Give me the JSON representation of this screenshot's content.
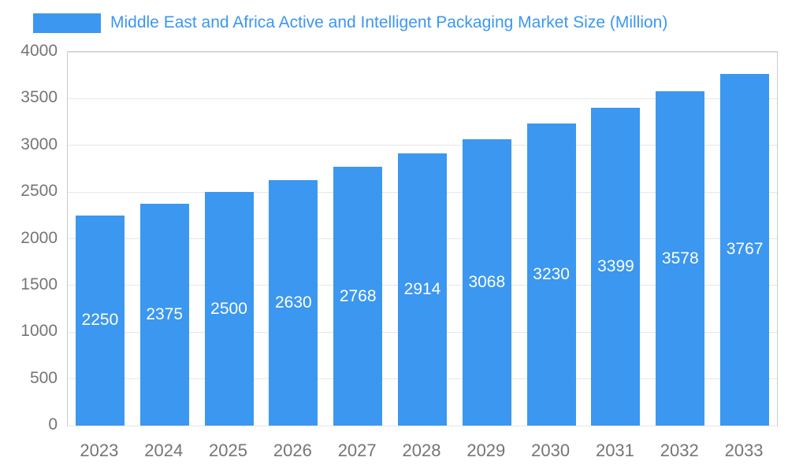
{
  "chart_data": {
    "type": "bar",
    "title": "Middle East and Africa Active and Intelligent Packaging Market Size (Million)",
    "categories": [
      "2023",
      "2024",
      "2025",
      "2026",
      "2027",
      "2028",
      "2029",
      "2030",
      "2031",
      "2032",
      "2033"
    ],
    "values": [
      2250,
      2375,
      2500,
      2630,
      2768,
      2914,
      3068,
      3230,
      3399,
      3578,
      3767
    ],
    "xlabel": "",
    "ylabel": "",
    "ylim": [
      0,
      4000
    ],
    "yticks": [
      0,
      500,
      1000,
      1500,
      2000,
      2500,
      3000,
      3500,
      4000
    ],
    "grid": true,
    "legend_position": "top-left",
    "value_labels": "inside-center",
    "bar_color": "#3b97f0",
    "title_color": "#3b97f0",
    "axis_text_color": "#757575",
    "grid_color": "#e6e6e6",
    "plot_border_color": "#cccccc",
    "value_label_color": "#ffffff",
    "background_color": "#ffffff"
  }
}
